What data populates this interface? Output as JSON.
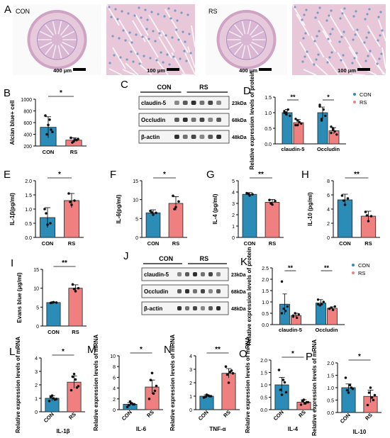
{
  "colors": {
    "con": "#2b8cb8",
    "rs": "#f08080",
    "bar_edge": "#222222",
    "dot": "#111111",
    "histo_bg": "#e8c8d8",
    "histo_stain": "#7a9bc8"
  },
  "section_a": {
    "panel_letter": "A",
    "groups": [
      {
        "label": "CON",
        "scales": [
          "400 μm",
          "100 μm"
        ]
      },
      {
        "label": "RS",
        "scales": [
          "400 μm",
          "100 μm"
        ]
      }
    ]
  },
  "blots": {
    "C": {
      "panel_letter": "C",
      "groups": [
        "CON",
        "RS"
      ],
      "rows": [
        {
          "protein": "claudin-5",
          "kda": "23kDa"
        },
        {
          "protein": "Occludin",
          "kda": "68kDa"
        },
        {
          "protein": "β-actin",
          "kda": "48kDa"
        }
      ]
    },
    "J": {
      "panel_letter": "J",
      "groups": [
        "CON",
        "RS"
      ],
      "rows": [
        {
          "protein": "claudin-5",
          "kda": "23kDa"
        },
        {
          "protein": "Occludin",
          "kda": "68kDa"
        },
        {
          "protein": "β-actin",
          "kda": "48kDa"
        }
      ]
    }
  },
  "chart_data": [
    {
      "id": "B",
      "panel_letter": "B",
      "type": "bar",
      "ylabel": "Alcian blue+ cell",
      "ylim": [
        200,
        1000
      ],
      "yticks": [
        "200",
        "400",
        "600",
        "800",
        "1000"
      ],
      "ytick_values": [
        200,
        400,
        600,
        800,
        1000
      ],
      "categories": [
        "CON",
        "RS"
      ],
      "values": [
        520,
        300
      ],
      "errors": [
        180,
        40
      ],
      "points": [
        [
          720,
          560,
          480,
          400,
          650,
          440
        ],
        [
          340,
          280,
          300,
          260,
          310,
          320
        ]
      ],
      "significance": "*"
    },
    {
      "id": "D",
      "panel_letter": "D",
      "type": "bar",
      "ylabel": "Relative expression levels of protein",
      "ylim": [
        0,
        1.5
      ],
      "yticks": [
        "0.0",
        "0.5",
        "1.0",
        "1.5"
      ],
      "ytick_values": [
        0,
        0.5,
        1,
        1.5
      ],
      "categories": [
        "claudin-5",
        "Occludin"
      ],
      "series": [
        {
          "name": "CON",
          "values": [
            1.0,
            1.0
          ],
          "errors": [
            0.1,
            0.18
          ],
          "points": [
            [
              1.05,
              0.95,
              1.1,
              0.9,
              1.0,
              1.0
            ],
            [
              1.2,
              0.8,
              1.1,
              0.9,
              1.25,
              0.75
            ]
          ]
        },
        {
          "name": "RS",
          "values": [
            0.68,
            0.42
          ],
          "errors": [
            0.1,
            0.1
          ],
          "points": [
            [
              0.6,
              0.75,
              0.7,
              0.65,
              0.8,
              0.6
            ],
            [
              0.35,
              0.5,
              0.4,
              0.3,
              0.55,
              0.45
            ]
          ]
        }
      ],
      "significance": [
        "**",
        "*"
      ],
      "legend": "top-right"
    },
    {
      "id": "E",
      "panel_letter": "E",
      "type": "bar",
      "ylabel": "IL-1β(pg/ml)",
      "ylim": [
        0,
        2
      ],
      "yticks": [
        "0.0",
        "0.5",
        "1.0",
        "1.5",
        "2.0"
      ],
      "ytick_values": [
        0,
        0.5,
        1,
        1.5,
        2
      ],
      "categories": [
        "CON",
        "RS"
      ],
      "values": [
        0.7,
        1.3
      ],
      "errors": [
        0.35,
        0.25
      ],
      "points": [
        [
          1.0,
          0.45,
          0.5,
          0.85
        ],
        [
          1.55,
          1.15,
          1.3,
          1.25
        ]
      ],
      "significance": "*"
    },
    {
      "id": "F",
      "panel_letter": "F",
      "type": "bar",
      "ylabel": "IL-6(pg/ml)",
      "ylim": [
        0,
        15
      ],
      "yticks": [
        "0",
        "5",
        "10",
        "15"
      ],
      "ytick_values": [
        0,
        5,
        10,
        15
      ],
      "categories": [
        "CON",
        "RS"
      ],
      "values": [
        6.5,
        9.0
      ],
      "errors": [
        0.8,
        1.8
      ],
      "points": [
        [
          7.0,
          6.0,
          6.5,
          6.6
        ],
        [
          11.0,
          8.0,
          9.5,
          7.5
        ]
      ],
      "significance": "*"
    },
    {
      "id": "G",
      "panel_letter": "G",
      "type": "bar",
      "ylabel": "IL-4 (pg/ml)",
      "ylim": [
        0,
        5
      ],
      "yticks": [
        "0",
        "1",
        "2",
        "3",
        "4",
        "5"
      ],
      "ytick_values": [
        0,
        1,
        2,
        3,
        4,
        5
      ],
      "categories": [
        "CON",
        "RS"
      ],
      "values": [
        3.8,
        3.1
      ],
      "errors": [
        0.15,
        0.25
      ],
      "points": [
        [
          3.9,
          3.7,
          3.8,
          3.85
        ],
        [
          3.3,
          2.9,
          3.2,
          3.0
        ]
      ],
      "significance": "**"
    },
    {
      "id": "H",
      "panel_letter": "H",
      "type": "bar",
      "ylabel": "IL-10 (pg/ml)",
      "ylim": [
        0,
        8
      ],
      "yticks": [
        "0",
        "2",
        "4",
        "6",
        "8"
      ],
      "ytick_values": [
        0,
        2,
        4,
        6,
        8
      ],
      "categories": [
        "CON",
        "RS"
      ],
      "values": [
        5.3,
        3.0
      ],
      "errors": [
        0.8,
        0.7
      ],
      "points": [
        [
          5.9,
          4.6,
          5.5,
          5.2
        ],
        [
          3.6,
          2.3,
          3.0,
          3.1
        ]
      ],
      "significance": "**"
    },
    {
      "id": "I",
      "panel_letter": "I",
      "type": "bar",
      "ylabel": "Evans blue (μg/ml)",
      "ylim": [
        0,
        15
      ],
      "yticks": [
        "0",
        "5",
        "10",
        "15"
      ],
      "ytick_values": [
        0,
        5,
        10,
        15
      ],
      "categories": [
        "CON",
        "RS"
      ],
      "values": [
        6.2,
        10.0
      ],
      "errors": [
        0.15,
        0.9
      ],
      "points": [
        [
          6.1,
          6.3,
          6.2,
          6.2
        ],
        [
          11.0,
          9.2,
          10.0,
          9.8
        ]
      ],
      "significance": "**"
    },
    {
      "id": "K",
      "panel_letter": "K",
      "type": "bar",
      "ylabel": "Relative expression levels of protein",
      "ylim": [
        0,
        2.5
      ],
      "yticks": [
        "0.0",
        "0.5",
        "1.0",
        "1.5",
        "2.0",
        "2.5"
      ],
      "ytick_values": [
        0,
        0.5,
        1,
        1.5,
        2,
        2.5
      ],
      "categories": [
        "claudin-5",
        "Occludin"
      ],
      "series": [
        {
          "name": "CON",
          "values": [
            0.9,
            0.95
          ],
          "errors": [
            0.45,
            0.15
          ],
          "points": [
            [
              1.9,
              0.7,
              0.6,
              0.8,
              0.5
            ],
            [
              1.1,
              0.85,
              0.9,
              1.0,
              0.9
            ]
          ]
        },
        {
          "name": "RS",
          "values": [
            0.4,
            0.72
          ],
          "errors": [
            0.1,
            0.06
          ],
          "points": [
            [
              0.35,
              0.5,
              0.3,
              0.45,
              0.4
            ],
            [
              0.7,
              0.75,
              0.65,
              0.8,
              0.7
            ]
          ]
        }
      ],
      "significance": [
        "**",
        "**"
      ],
      "legend": "top-right"
    },
    {
      "id": "L",
      "panel_letter": "L",
      "type": "bar",
      "ylabel": "Relative expression levels of mRNA",
      "xlabel": "IL-1β",
      "ylim": [
        0,
        4
      ],
      "yticks": [
        "0",
        "1",
        "2",
        "3",
        "4"
      ],
      "ytick_values": [
        0,
        1,
        2,
        3,
        4
      ],
      "categories": [
        "CON",
        "RS"
      ],
      "values": [
        1.0,
        2.2
      ],
      "errors": [
        0.2,
        0.45
      ],
      "points": [
        [
          0.8,
          1.2,
          0.9,
          1.1,
          1.0,
          0.95
        ],
        [
          1.6,
          2.8,
          1.8,
          2.6,
          2.4,
          1.9
        ]
      ],
      "significance": "*"
    },
    {
      "id": "M",
      "panel_letter": "M",
      "type": "bar",
      "ylabel": "Relative expression levels of mRNA",
      "xlabel": "IL-6",
      "ylim": [
        0,
        10
      ],
      "yticks": [
        "0",
        "2",
        "4",
        "6",
        "8",
        "10"
      ],
      "ytick_values": [
        0,
        2,
        4,
        6,
        8,
        10
      ],
      "categories": [
        "CON",
        "RS"
      ],
      "values": [
        1.0,
        4.2
      ],
      "errors": [
        0.3,
        1.3
      ],
      "points": [
        [
          0.5,
          1.5,
          1.0,
          0.8,
          1.2,
          1.0
        ],
        [
          2.0,
          6.8,
          3.5,
          5.5,
          3.0,
          4.4
        ]
      ],
      "significance": "*"
    },
    {
      "id": "N",
      "panel_letter": "N",
      "type": "bar",
      "ylabel": "Relative expression levels of mRNA",
      "xlabel": "TNF-α",
      "ylim": [
        0,
        4
      ],
      "yticks": [
        "0",
        "1",
        "2",
        "3",
        "4"
      ],
      "ytick_values": [
        0,
        1,
        2,
        3,
        4
      ],
      "categories": [
        "CON",
        "RS"
      ],
      "values": [
        1.0,
        2.7
      ],
      "errors": [
        0.1,
        0.35
      ],
      "points": [
        [
          0.9,
          1.1,
          1.0,
          0.95,
          1.05,
          1.0
        ],
        [
          3.2,
          2.0,
          2.9,
          2.6,
          2.8,
          2.7
        ]
      ],
      "significance": "**"
    },
    {
      "id": "O",
      "panel_letter": "O",
      "type": "bar",
      "ylabel": "Relative expression levels of mRNA",
      "xlabel": "IL-4",
      "ylim": [
        0,
        2
      ],
      "yticks": [
        "0.0",
        "0.5",
        "1.0",
        "1.5",
        "2.0"
      ],
      "ytick_values": [
        0,
        0.5,
        1,
        1.5,
        2
      ],
      "categories": [
        "CON",
        "RS"
      ],
      "values": [
        1.0,
        0.3
      ],
      "errors": [
        0.3,
        0.1
      ],
      "points": [
        [
          1.6,
          0.6,
          1.1,
          0.8,
          1.2,
          0.7
        ],
        [
          0.2,
          0.4,
          0.3,
          0.35,
          0.25,
          0.3
        ]
      ],
      "significance": "*"
    },
    {
      "id": "P",
      "panel_letter": "P",
      "type": "bar",
      "ylabel": "Relative expression levels of mRNA",
      "xlabel": "IL-10",
      "ylim": [
        0,
        2
      ],
      "yticks": [
        "0.0",
        "0.5",
        "1.0",
        "1.5",
        "2.0"
      ],
      "ytick_values": [
        0,
        0.5,
        1,
        1.5,
        2
      ],
      "categories": [
        "CON",
        "RS"
      ],
      "values": [
        1.0,
        0.65
      ],
      "errors": [
        0.15,
        0.25
      ],
      "points": [
        [
          1.4,
          0.8,
          1.0,
          0.9,
          1.1,
          0.95
        ],
        [
          0.3,
          1.0,
          0.5,
          0.8,
          0.6,
          0.7
        ]
      ],
      "significance": "*"
    }
  ]
}
